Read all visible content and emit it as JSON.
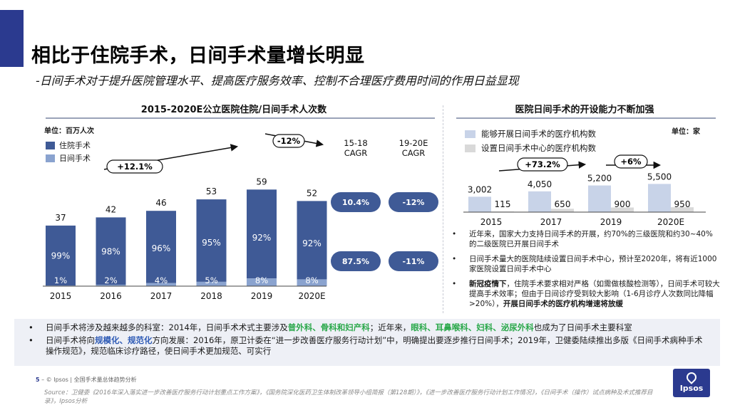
{
  "header": {
    "title": "相比于住院手术，日间手术量增长明显",
    "subtitle": "-日间手术对于提升医院管理水平、提高医疗服务效率、控制不合理医疗费用时间的作用日益显现"
  },
  "left_panel": {
    "title": "2015-2020E公立医院住院/日间手术人次数",
    "unit": "单位：百万人次",
    "legend": [
      "住院手术",
      "日间手术"
    ],
    "cagr_headers": [
      "15-18\nCAGR",
      "19-20E\nCAGR"
    ],
    "cagr_inpatient": [
      "10.4%",
      "-12%"
    ],
    "cagr_daytime": [
      "87.5%",
      "-11%"
    ],
    "arrow_labels": [
      "+12.1%",
      "-12%"
    ]
  },
  "chart_data": [
    {
      "type": "bar",
      "stacked": true,
      "categories": [
        "2015",
        "2016",
        "2017",
        "2018",
        "2019",
        "2020E"
      ],
      "totals": [
        37,
        42,
        46,
        53,
        59,
        52
      ],
      "series": [
        {
          "name": "住院手术",
          "color": "#3f5a96",
          "labels": [
            "99%",
            "98%",
            "96%",
            "95%",
            "92%",
            "92%"
          ],
          "share": [
            0.99,
            0.98,
            0.96,
            0.95,
            0.92,
            0.92
          ]
        },
        {
          "name": "日间手术",
          "color": "#8aa3cf",
          "labels": [
            "1%",
            "2%",
            "4%",
            "5%",
            "8%",
            "8%"
          ],
          "share": [
            0.01,
            0.02,
            0.04,
            0.05,
            0.08,
            0.08
          ]
        }
      ]
    },
    {
      "type": "bar",
      "categories": [
        "2015",
        "2017",
        "2019",
        "2020E"
      ],
      "series": [
        {
          "name": "能够开展日间手术的医疗机构数",
          "color": "#c8d3e8",
          "values": [
            3002,
            4050,
            5200,
            5500
          ],
          "labels": [
            "3,002",
            "4,050",
            "5,200",
            "5,500"
          ]
        },
        {
          "name": "设置日间手术中心的医疗机构数",
          "color": "#d9d9d9",
          "values": [
            115,
            650,
            900,
            950
          ],
          "labels": [
            "115",
            "650",
            "900",
            "950"
          ]
        }
      ]
    }
  ],
  "right_panel": {
    "title": "医院日间手术的开设能力不断加强",
    "unit": "单位：家",
    "arrow_labels": [
      "+73.2%",
      "+6%"
    ],
    "bullets": [
      "近年来，国家大力支持日间手术的开展，约70%的三级医院和约30~40%的二级医院已开展日间手术",
      "日间手术量大的医院陆续设置日间手术中心，预计至2020年，将有近1000家医院设置日间手术中心"
    ],
    "bullet3_bold": "新冠疫情下",
    "bullet3_text": "，住院手术要求相对严格（如需做核酸检测等），日间手术可较大提高手术效率；但由于日间诊疗受到较大影响（1-6月诊疗人次数同比降幅>20%），",
    "bullet3_end": "开展日间手术的医疗机构增速将放缓"
  },
  "bottom": {
    "b1_a": "日间手术将涉及越来越多的科室：2014年，日间手术术式主要涉及",
    "b1_g1": "普外科、骨科和妇产科",
    "b1_b": "；近年来，",
    "b1_g2": "眼科、耳鼻喉科、妇科、泌尿外科",
    "b1_c": "也成为了日间手术主要科室",
    "b2_a": "日间手术将向",
    "b2_blue": "规模化、规范化",
    "b2_b": "方向发展：2016年，原卫计委在“进一步改善医疗服务行动计划”中，明确提出要逐步推行日间手术；2019年，卫健委陆续推出多版《日间手术病种手术操作规范》，规范临床诊疗路径，使日间手术更加规范、可实行"
  },
  "footer": {
    "page": "5",
    "text": "– © Ipsos | 全国手术量总体趋势分析",
    "source": "Source：卫健委《2016年深入落实进一步改善医疗服务行动计划重点工作方案》，《国务院深化医药卫生体制改革领导小组简报（第128期）》，《进一步改善医疗服务行动计划工作情况》，《日间手术（操作）试点病种及术式推荐目录》，Ipsos分析"
  },
  "logo": "Ipsos",
  "colors": {
    "brand": "#2b3a8f",
    "bar_dark": "#3f5a96",
    "bar_light": "#8aa3cf",
    "green": "#2aa84a"
  }
}
